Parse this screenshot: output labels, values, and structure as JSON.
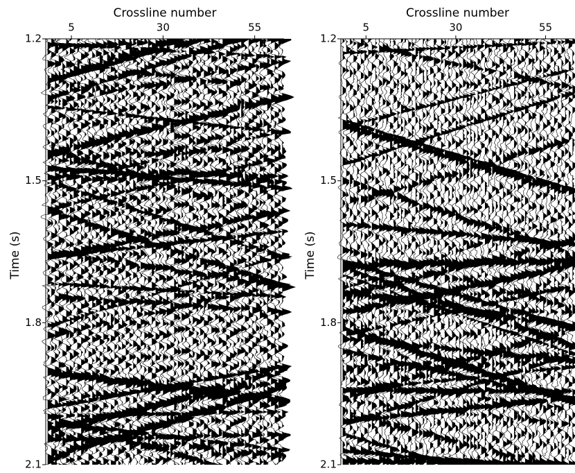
{
  "chart_data": [
    {
      "type": "wiggle",
      "title": "Crossline number",
      "y_label": "Time (s)",
      "xlim": [
        -2,
        63
      ],
      "xticks": [
        5,
        30,
        55
      ],
      "ylim": [
        2.1,
        1.2
      ],
      "yticks": [
        1.2,
        1.5,
        1.8,
        2.1
      ],
      "color": "#000000"
    },
    {
      "type": "wiggle",
      "title": "Crossline number",
      "y_label": "Time (s)",
      "xlim": [
        -2,
        63
      ],
      "xticks": [
        5,
        30,
        55
      ],
      "ylim": [
        2.1,
        1.2
      ],
      "yticks": [
        1.2,
        1.5,
        1.8,
        2.1
      ],
      "color": "#000000"
    }
  ]
}
